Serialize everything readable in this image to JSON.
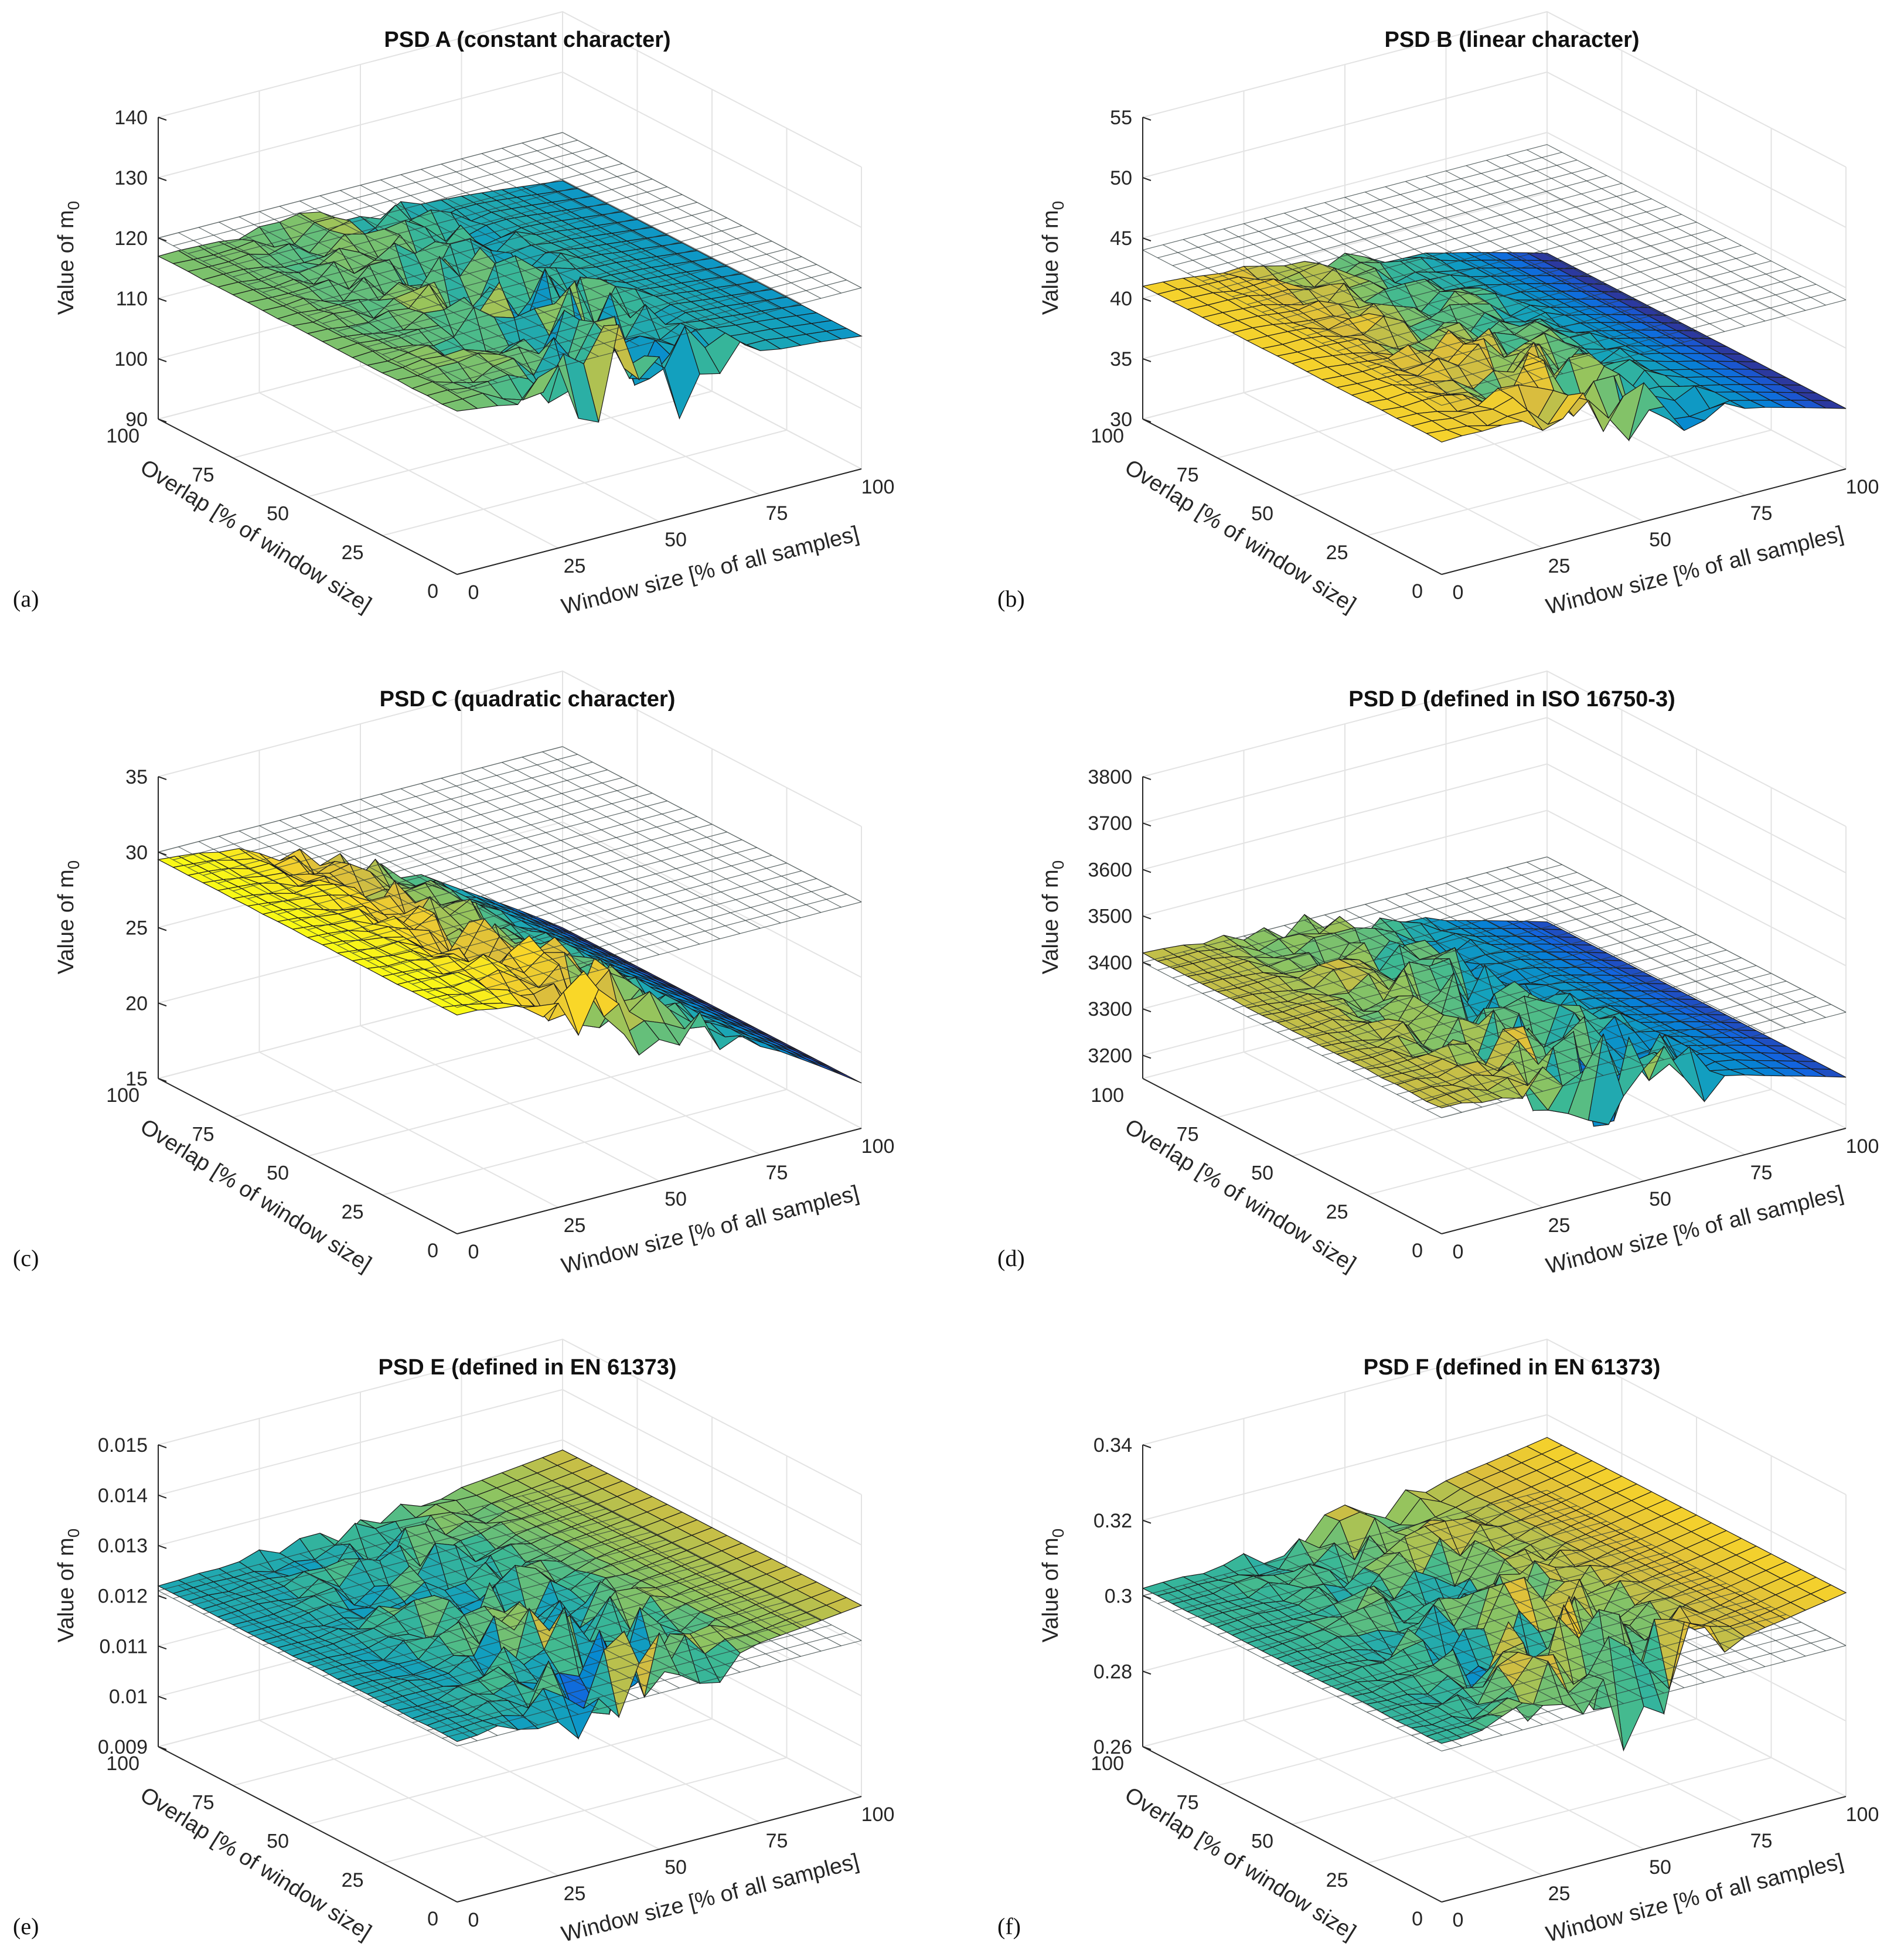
{
  "chart_data": [
    {
      "type": "surface3d",
      "panel_label": "(a)",
      "title": "PSD A (constant character)",
      "zlabel_main": "Value of m",
      "zlabel_sub": "0",
      "xlabel": "Window size [% of all samples]",
      "ylabel": "Overlap [% of window size]",
      "x_ticks": [
        "0",
        "25",
        "50",
        "75",
        "100"
      ],
      "y_ticks": [
        "0",
        "25",
        "50",
        "75",
        "100"
      ],
      "z_ticks": [
        "90",
        "100",
        "110",
        "120",
        "130",
        "140"
      ],
      "zlim": [
        90,
        140
      ],
      "reference_plane": 120,
      "base_level": 117,
      "tail_level": 112,
      "noise_amplitude": 10,
      "grid_lines": true
    },
    {
      "type": "surface3d",
      "panel_label": "(b)",
      "title": "PSD B (linear character)",
      "zlabel_main": "Value of m",
      "zlabel_sub": "0",
      "xlabel": "Window size [% of all samples]",
      "ylabel": "Overlap [% of window size]",
      "x_ticks": [
        "0",
        "25",
        "50",
        "75",
        "100"
      ],
      "y_ticks": [
        "0",
        "25",
        "50",
        "75",
        "100"
      ],
      "z_ticks": [
        "30",
        "35",
        "40",
        "45",
        "50",
        "55"
      ],
      "zlim": [
        30,
        55
      ],
      "reference_plane": 44,
      "base_level": 41,
      "tail_level": 35,
      "noise_amplitude": 3,
      "grid_lines": true
    },
    {
      "type": "surface3d",
      "panel_label": "(c)",
      "title": "PSD C (quadratic character)",
      "zlabel_main": "Value of m",
      "zlabel_sub": "0",
      "xlabel": "Window size [% of all samples]",
      "ylabel": "Overlap [% of window size]",
      "x_ticks": [
        "0",
        "25",
        "50",
        "75",
        "100"
      ],
      "y_ticks": [
        "0",
        "25",
        "50",
        "75",
        "100"
      ],
      "z_ticks": [
        "15",
        "20",
        "25",
        "30",
        "35"
      ],
      "zlim": [
        15,
        35
      ],
      "reference_plane": 30,
      "base_level": 29.5,
      "tail_level": 18,
      "noise_amplitude": 3,
      "grid_lines": true
    },
    {
      "type": "surface3d",
      "panel_label": "(d)",
      "title": "PSD D (defined in ISO 16750-3)",
      "zlabel_main": "Value of m",
      "zlabel_sub": "0",
      "xlabel": "Window size [% of all samples]",
      "ylabel": "Overlap [% of window size]",
      "x_ticks": [
        "0",
        "25",
        "50",
        "75",
        "100"
      ],
      "y_ticks": [
        "0",
        "25",
        "50",
        "75",
        "100"
      ],
      "z_ticks": [
        "3200",
        "3300",
        "3400",
        "3500",
        "3600",
        "3700",
        "3800"
      ],
      "zlim": [
        3150,
        3800
      ],
      "reference_plane": 3400,
      "base_level": 3420,
      "tail_level": 3260,
      "noise_amplitude": 130,
      "grid_lines": true
    },
    {
      "type": "surface3d",
      "panel_label": "(e)",
      "title": "PSD E (defined in EN 61373)",
      "zlabel_main": "Value of m",
      "zlabel_sub": "0",
      "xlabel": "Window size [% of all samples]",
      "ylabel": "Overlap [% of window size]",
      "x_ticks": [
        "0",
        "25",
        "50",
        "75",
        "100"
      ],
      "y_ticks": [
        "0",
        "25",
        "50",
        "75",
        "100"
      ],
      "z_ticks": [
        "0.009",
        "0.01",
        "0.011",
        "0.012",
        "0.013",
        "0.014",
        "0.015"
      ],
      "zlim": [
        0.009,
        0.015
      ],
      "reference_plane": 0.0121,
      "base_level": 0.0122,
      "tail_level": 0.0128,
      "noise_amplitude": 0.0011,
      "grid_lines": true
    },
    {
      "type": "surface3d",
      "panel_label": "(f)",
      "title": "PSD F (defined in EN 61373)",
      "zlabel_main": "Value of m",
      "zlabel_sub": "0",
      "xlabel": "Window size [% of all samples]",
      "ylabel": "Overlap [% of window size]",
      "x_ticks": [
        "0",
        "25",
        "50",
        "75",
        "100"
      ],
      "y_ticks": [
        "0",
        "25",
        "50",
        "75",
        "100"
      ],
      "z_ticks": [
        "0.26",
        "0.28",
        "0.3",
        "0.32",
        "0.34"
      ],
      "zlim": [
        0.26,
        0.34
      ],
      "reference_plane": 0.3,
      "base_level": 0.302,
      "tail_level": 0.314,
      "noise_amplitude": 0.018,
      "grid_lines": true
    }
  ]
}
